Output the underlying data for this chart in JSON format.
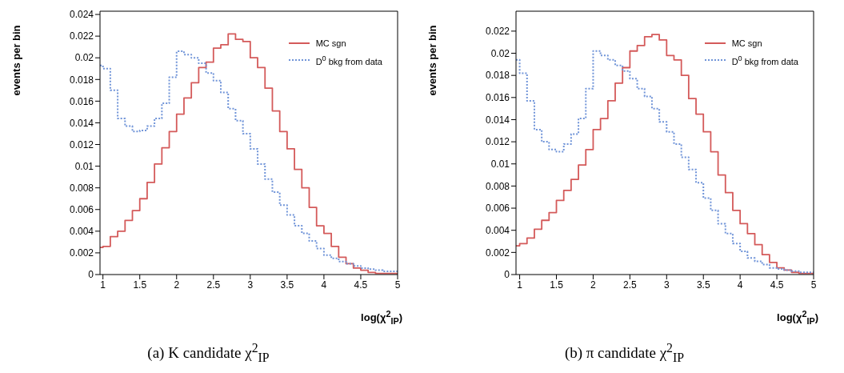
{
  "chart_data": [
    {
      "type": "step",
      "title": "(a) K candidate χ$^{2}$$_{IP}$",
      "xlabel": "log(χ$^{2}$$_{IP}$)",
      "ylabel": "events per bin",
      "legend": "top right",
      "grid": false,
      "xlim": [
        0.96,
        5
      ],
      "xticks": [
        1,
        1.5,
        2,
        2.5,
        3,
        3.5,
        4,
        4.5,
        5
      ],
      "ylim": [
        0,
        0.0243
      ],
      "yticks": [
        0,
        0.002,
        0.004,
        0.006,
        0.008,
        0.01,
        0.012,
        0.014,
        0.016,
        0.018,
        0.02,
        0.022,
        0.024
      ],
      "x": [
        0.96,
        1.0,
        1.1,
        1.2,
        1.3,
        1.4,
        1.5,
        1.6,
        1.7,
        1.8,
        1.9,
        2.0,
        2.1,
        2.2,
        2.3,
        2.4,
        2.5,
        2.6,
        2.7,
        2.8,
        2.9,
        3.0,
        3.1,
        3.2,
        3.3,
        3.4,
        3.5,
        3.6,
        3.7,
        3.8,
        3.9,
        4.0,
        4.1,
        4.2,
        4.3,
        4.4,
        4.5,
        4.6,
        4.7,
        4.8,
        4.9,
        5.0
      ],
      "series": [
        {
          "name": "MC sgn",
          "color": "#d45a5a",
          "line_style": "solid",
          "values": [
            0.0025,
            0.0026,
            0.0035,
            0.004,
            0.005,
            0.0059,
            0.007,
            0.0085,
            0.0102,
            0.0117,
            0.0132,
            0.0148,
            0.0163,
            0.0177,
            0.0191,
            0.0196,
            0.0209,
            0.0212,
            0.0222,
            0.0217,
            0.0215,
            0.02,
            0.0191,
            0.0172,
            0.0151,
            0.0132,
            0.0116,
            0.0097,
            0.008,
            0.0062,
            0.0045,
            0.0038,
            0.0026,
            0.0016,
            0.001,
            0.0006,
            0.0004,
            0.0002,
            0.0001,
            0.0001,
            0.0001,
            0.0001
          ]
        },
        {
          "name": "D$^{0}$ bkg from data",
          "color": "#7094d8",
          "line_style": "dotted",
          "values": [
            0.0193,
            0.019,
            0.017,
            0.0144,
            0.0137,
            0.0132,
            0.0133,
            0.0137,
            0.0144,
            0.0158,
            0.0182,
            0.0206,
            0.0203,
            0.02,
            0.0195,
            0.0186,
            0.0179,
            0.0168,
            0.0153,
            0.0142,
            0.013,
            0.0116,
            0.0102,
            0.0088,
            0.0076,
            0.0064,
            0.0055,
            0.0045,
            0.0038,
            0.0031,
            0.0024,
            0.0018,
            0.0015,
            0.0012,
            0.001,
            0.0008,
            0.0006,
            0.0005,
            0.0004,
            0.0003,
            0.0003,
            0.0003
          ]
        }
      ]
    },
    {
      "type": "step",
      "title": "(b) π candidate χ$^{2}$$_{IP}$",
      "xlabel": "log(χ$^{2}$$_{IP}$)",
      "ylabel": "events per bin",
      "legend": "top right",
      "grid": false,
      "xlim": [
        0.95,
        5
      ],
      "xticks": [
        1,
        1.5,
        2,
        2.5,
        3,
        3.5,
        4,
        4.5,
        5
      ],
      "ylim": [
        0,
        0.0238
      ],
      "yticks": [
        0,
        0.002,
        0.004,
        0.006,
        0.008,
        0.01,
        0.012,
        0.014,
        0.016,
        0.018,
        0.02,
        0.022
      ],
      "x": [
        0.95,
        1.0,
        1.1,
        1.2,
        1.3,
        1.4,
        1.5,
        1.6,
        1.7,
        1.8,
        1.9,
        2.0,
        2.1,
        2.2,
        2.3,
        2.4,
        2.5,
        2.6,
        2.7,
        2.8,
        2.9,
        3.0,
        3.1,
        3.2,
        3.3,
        3.4,
        3.5,
        3.6,
        3.7,
        3.8,
        3.9,
        4.0,
        4.1,
        4.2,
        4.3,
        4.4,
        4.5,
        4.6,
        4.7,
        4.8,
        4.9,
        5.0
      ],
      "series": [
        {
          "name": "MC sgn",
          "color": "#d45a5a",
          "line_style": "solid",
          "values": [
            0.0026,
            0.0028,
            0.0033,
            0.0041,
            0.0049,
            0.0056,
            0.0067,
            0.0076,
            0.0086,
            0.0099,
            0.0113,
            0.0131,
            0.0141,
            0.0157,
            0.0173,
            0.0187,
            0.0202,
            0.0207,
            0.0215,
            0.0217,
            0.0212,
            0.0198,
            0.0194,
            0.018,
            0.0159,
            0.0145,
            0.0129,
            0.0111,
            0.009,
            0.0074,
            0.0058,
            0.0046,
            0.0037,
            0.0027,
            0.0018,
            0.0011,
            0.0006,
            0.0004,
            0.0002,
            0.0001,
            0.0001,
            0.0001
          ]
        },
        {
          "name": "D$^{0}$ bkg from data",
          "color": "#7094d8",
          "line_style": "dotted",
          "values": [
            0.0194,
            0.0182,
            0.0157,
            0.0131,
            0.012,
            0.0113,
            0.0111,
            0.0118,
            0.0127,
            0.0141,
            0.0168,
            0.0202,
            0.0198,
            0.0194,
            0.0189,
            0.0184,
            0.0177,
            0.0168,
            0.0161,
            0.015,
            0.0138,
            0.0129,
            0.0118,
            0.0106,
            0.0095,
            0.0083,
            0.0069,
            0.0058,
            0.0046,
            0.0037,
            0.0028,
            0.0021,
            0.0015,
            0.0012,
            0.0009,
            0.0006,
            0.0005,
            0.0004,
            0.0003,
            0.0002,
            0.0002,
            0.0002
          ]
        }
      ]
    }
  ]
}
